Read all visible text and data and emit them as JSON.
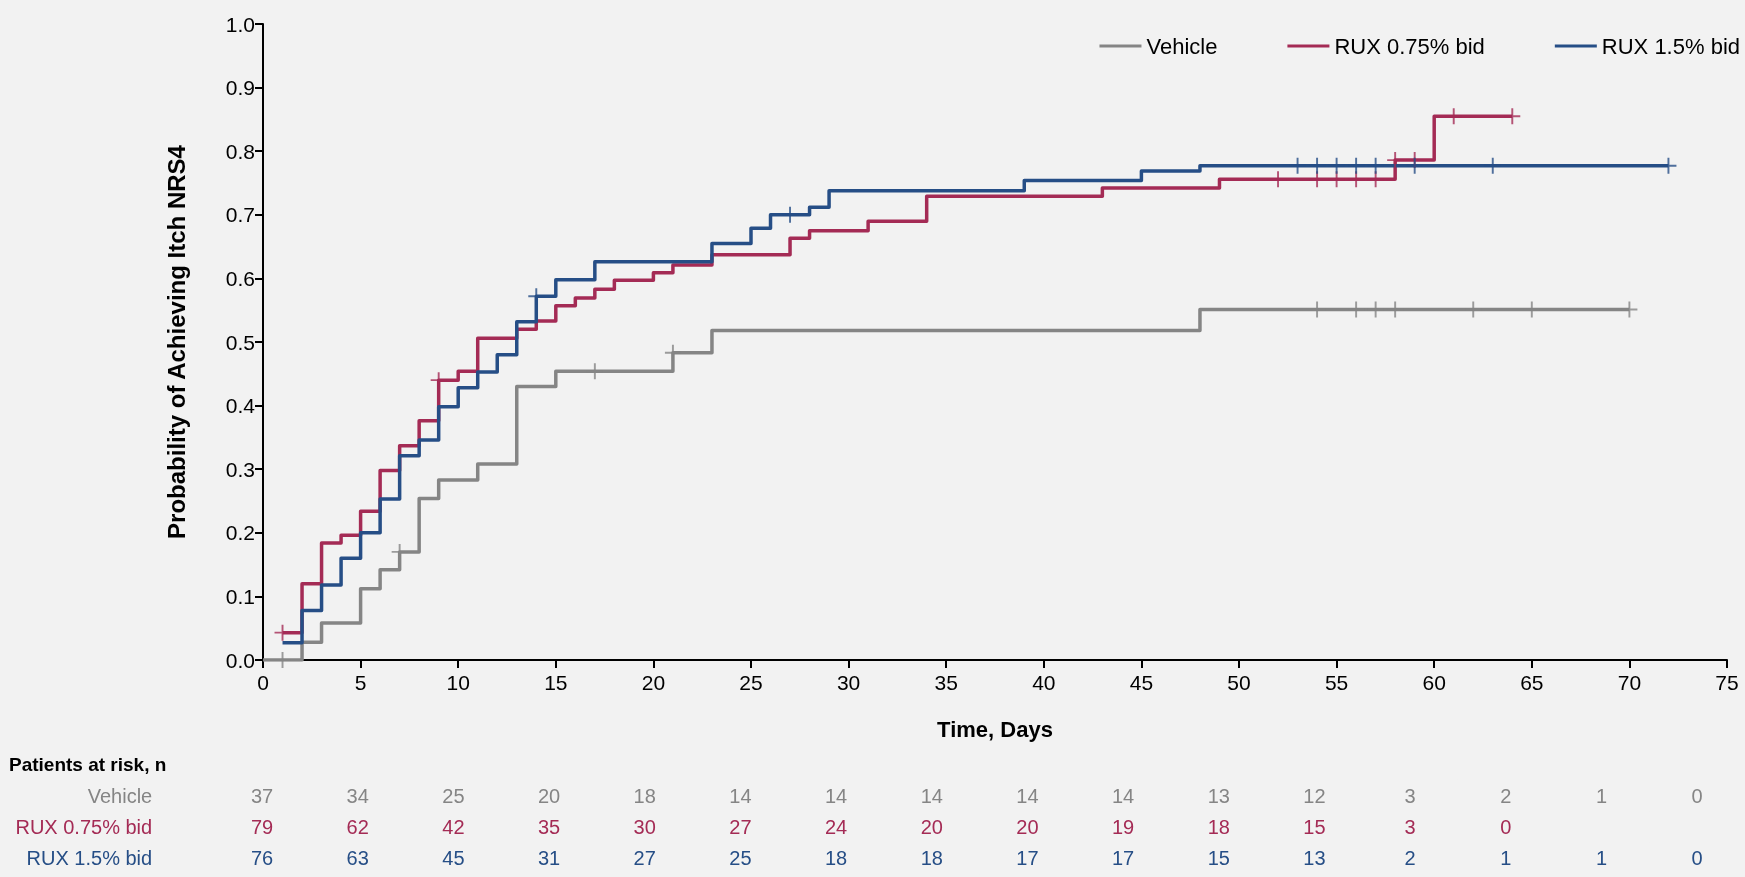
{
  "chart_data": [
    {
      "type": "step",
      "xlabel": "Time, Days",
      "ylabel": "Probability of Achieving Itch NRS4",
      "xlim": [
        0,
        75
      ],
      "xticks": [
        0,
        5,
        10,
        15,
        20,
        25,
        30,
        35,
        40,
        45,
        50,
        55,
        60,
        65,
        70,
        75
      ],
      "ylim": [
        0,
        1
      ],
      "yticks": [
        {
          "value": 0,
          "label": "0.0"
        },
        0.1,
        0.2,
        0.3,
        0.4,
        0.5,
        0.6,
        0.7,
        0.8,
        0.9,
        {
          "value": 1,
          "label": "1.0"
        }
      ],
      "grid": false,
      "legend": "top right",
      "marker": "none",
      "line_style": "solid",
      "series": [
        {
          "name": "Vehicle",
          "color": "#858585",
          "x": [
            0,
            2,
            3,
            5,
            6,
            7,
            8,
            9,
            11,
            13,
            15,
            21,
            23,
            48,
            70
          ],
          "values": [
            0,
            0.028,
            0.058,
            0.112,
            0.142,
            0.17,
            0.254,
            0.283,
            0.308,
            0.43,
            0.454,
            0.483,
            0.518,
            0.551,
            0.551
          ]
        },
        {
          "name": "RUX 0.75% bid",
          "color": "#a42b55",
          "x": [
            1,
            2,
            3,
            4,
            5,
            6,
            7,
            8,
            9,
            10,
            11,
            13,
            14,
            15,
            16,
            17,
            18,
            20,
            21,
            23,
            27,
            28,
            31,
            34,
            43,
            49,
            58,
            60,
            64
          ],
          "values": [
            0.043,
            0.12,
            0.184,
            0.196,
            0.234,
            0.298,
            0.337,
            0.376,
            0.44,
            0.454,
            0.506,
            0.52,
            0.533,
            0.557,
            0.569,
            0.583,
            0.597,
            0.609,
            0.621,
            0.637,
            0.663,
            0.675,
            0.69,
            0.729,
            0.742,
            0.756,
            0.786,
            0.855,
            0.855
          ]
        },
        {
          "name": "RUX 1.5% bid",
          "color": "#264e86",
          "x": [
            1,
            2,
            3,
            4,
            5,
            6,
            7,
            8,
            9,
            10,
            11,
            12,
            13,
            14,
            15,
            17,
            23,
            25,
            26,
            28,
            29,
            39,
            45,
            48,
            72
          ],
          "values": [
            0.027,
            0.078,
            0.118,
            0.16,
            0.2,
            0.253,
            0.321,
            0.346,
            0.398,
            0.428,
            0.453,
            0.48,
            0.532,
            0.572,
            0.598,
            0.626,
            0.655,
            0.679,
            0.7,
            0.712,
            0.738,
            0.754,
            0.769,
            0.777,
            0.777
          ]
        },
        {
          "type": "scatter",
          "marker": "cross",
          "color": "#858585",
          "x": [
            1,
            7,
            17,
            21,
            54,
            56,
            57,
            58,
            62,
            65,
            70
          ],
          "values": [
            0,
            0.17,
            0.454,
            0.483,
            0.551,
            0.551,
            0.551,
            0.551,
            0.551,
            0.551,
            0.551
          ]
        },
        {
          "type": "scatter",
          "marker": "cross",
          "color": "#a42b55",
          "x": [
            1,
            9,
            52,
            54,
            55,
            56,
            57,
            58,
            59,
            61,
            64
          ],
          "values": [
            0.043,
            0.44,
            0.756,
            0.756,
            0.756,
            0.756,
            0.756,
            0.786,
            0.786,
            0.855,
            0.855
          ]
        },
        {
          "type": "scatter",
          "marker": "cross",
          "color": "#264e86",
          "x": [
            14,
            27,
            53,
            54,
            55,
            56,
            57,
            59,
            63,
            72
          ],
          "values": [
            0.572,
            0.7,
            0.777,
            0.777,
            0.777,
            0.777,
            0.777,
            0.777,
            0.777,
            0.777
          ]
        }
      ]
    },
    {
      "type": "heatmap",
      "title": "Patients at risk, n",
      "data_labels": true,
      "categories": [
        null,
        null,
        null,
        null,
        null,
        null,
        null,
        null,
        null,
        null,
        null,
        null,
        null,
        null,
        null,
        null
      ],
      "y_categories": [
        "Vehicle",
        "RUX 0.75% bid",
        "RUX 1.5% bid"
      ],
      "colors": [
        "#858585",
        "#a42b55",
        "#264e86"
      ],
      "cells": [
        [
          37,
          34,
          25,
          20,
          18,
          14,
          14,
          14,
          14,
          14,
          13,
          12,
          3,
          2,
          1,
          0
        ],
        [
          79,
          62,
          42,
          35,
          30,
          27,
          24,
          20,
          20,
          19,
          18,
          15,
          3,
          0,
          null,
          null
        ],
        [
          76,
          63,
          45,
          31,
          27,
          25,
          18,
          18,
          17,
          17,
          15,
          13,
          2,
          1,
          1,
          0
        ]
      ]
    }
  ]
}
